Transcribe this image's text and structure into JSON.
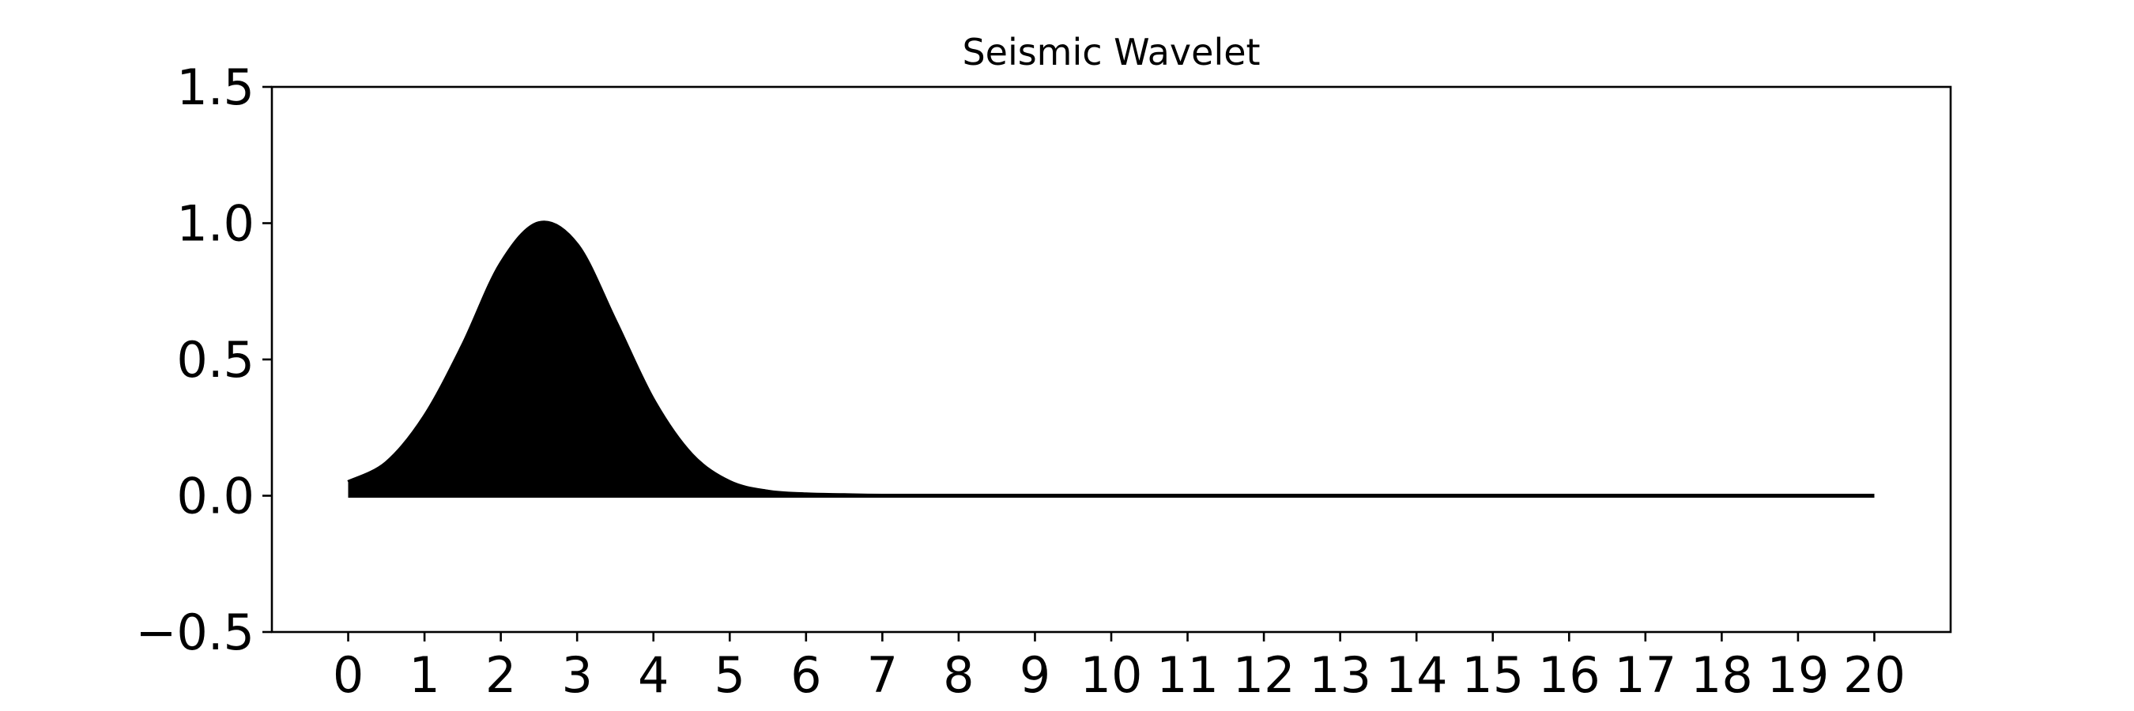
{
  "chart_data": {
    "type": "area",
    "title": "Seismic Wavelet",
    "xlabel": "",
    "ylabel": "",
    "xlim": [
      -1,
      21
    ],
    "ylim": [
      -0.5,
      1.5
    ],
    "xticks": [
      0,
      1,
      2,
      3,
      4,
      5,
      6,
      7,
      8,
      9,
      10,
      11,
      12,
      13,
      14,
      15,
      16,
      17,
      18,
      19,
      20
    ],
    "yticks": [
      -0.5,
      0.0,
      0.5,
      1.0,
      1.5
    ],
    "xtick_labels": [
      "0",
      "1",
      "2",
      "3",
      "4",
      "5",
      "6",
      "7",
      "8",
      "9",
      "10",
      "11",
      "12",
      "13",
      "14",
      "15",
      "16",
      "17",
      "18",
      "19",
      "20"
    ],
    "ytick_labels": [
      "−0.5",
      "0.0",
      "0.5",
      "1.0",
      "1.5"
    ],
    "grid": false,
    "legend": "none",
    "fill_color": "#000000",
    "line_color": "#000000",
    "x": [
      0,
      0.5,
      1,
      1.5,
      2,
      2.5,
      3,
      3.5,
      4,
      4.5,
      5,
      5.5,
      6,
      6.5,
      7,
      8,
      9,
      10,
      11,
      12,
      13,
      14,
      15,
      16,
      17,
      18,
      19,
      20
    ],
    "y": [
      0.05,
      0.12,
      0.29,
      0.55,
      0.85,
      1.0,
      0.92,
      0.64,
      0.35,
      0.15,
      0.05,
      0.015,
      0.005,
      0.002,
      0.0,
      0.0,
      0.0,
      0.0,
      0.0,
      0.0,
      0.0,
      0.0,
      0.0,
      0.0,
      0.0,
      0.0,
      0.0,
      0.0
    ]
  }
}
